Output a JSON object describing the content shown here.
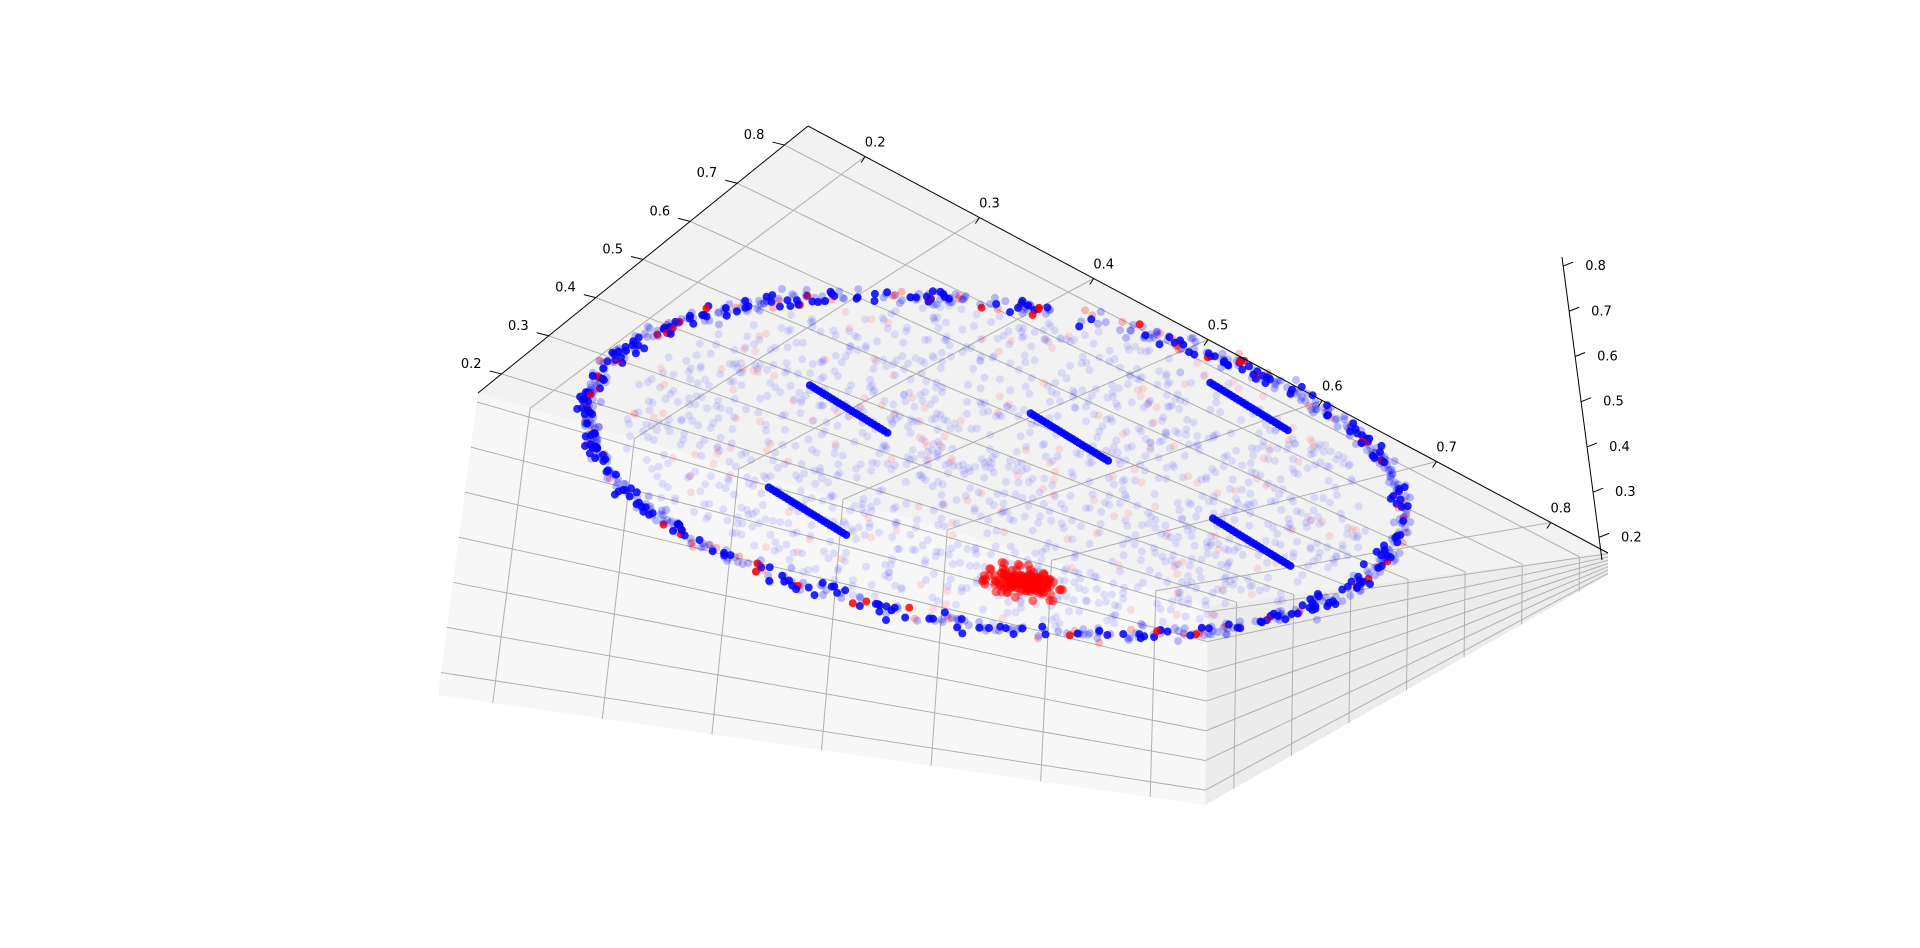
{
  "chart_data": {
    "type": "scatter",
    "projection": "3d",
    "title": "",
    "xlabel": "",
    "ylabel": "",
    "zlabel": "",
    "xlim": [
      0.15,
      0.85
    ],
    "ylim": [
      0.15,
      0.85
    ],
    "zlim": [
      0.15,
      0.82
    ],
    "x_ticks": [
      "0.2",
      "0.3",
      "0.4",
      "0.5",
      "0.6",
      "0.7",
      "0.8"
    ],
    "y_ticks": [
      "0.2",
      "0.3",
      "0.4",
      "0.5",
      "0.6",
      "0.7",
      "0.8"
    ],
    "z_ticks": [
      "0.2",
      "0.3",
      "0.4",
      "0.5",
      "0.6",
      "0.7",
      "0.8"
    ],
    "grid": true,
    "legend": "none",
    "series_colors": [
      "#0000ff",
      "#ff0000"
    ],
    "point_alpha": 0.1,
    "distribution": "elliptical ring of points around a sparse interior cloud; dense clusters along the ring edge and a dense red cluster near the front-centre"
  }
}
